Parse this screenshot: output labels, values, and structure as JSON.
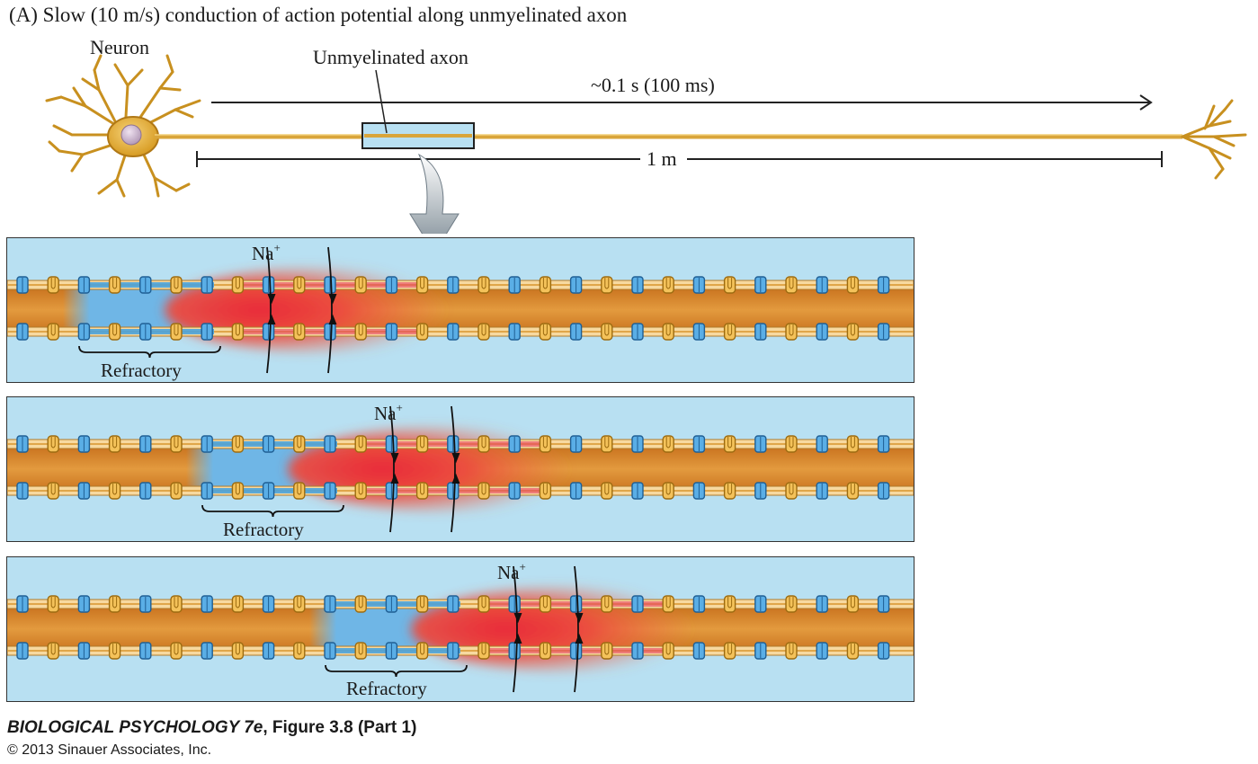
{
  "figure": {
    "title": "(A)  Slow (10 m/s) conduction of action potential along unmyelinated axon",
    "neuron_label": "Neuron",
    "axon_label": "Unmyelinated axon",
    "time_label": "~0.1 s (100 ms)",
    "distance_label": "1 m",
    "ion_label": "Na",
    "ion_charge": "+",
    "refractory_label": "Refractory"
  },
  "panels": [
    {
      "id": "panel-1",
      "refractory": "Refractory"
    },
    {
      "id": "panel-2",
      "refractory": "Refractory"
    },
    {
      "id": "panel-3",
      "refractory": "Refractory"
    }
  ],
  "caption": {
    "book": "BIOLOGICAL PSYCHOLOGY 7e",
    "figure": ", Figure 3.8 (Part 1)",
    "copyright": "© 2013 Sinauer Associates, Inc."
  },
  "colors": {
    "axon": "#e39a3e",
    "refractory": "#6fb6e6",
    "action_potential": "#e8283a",
    "background": "#b8e0f2",
    "neuron": "#e8b53a"
  }
}
